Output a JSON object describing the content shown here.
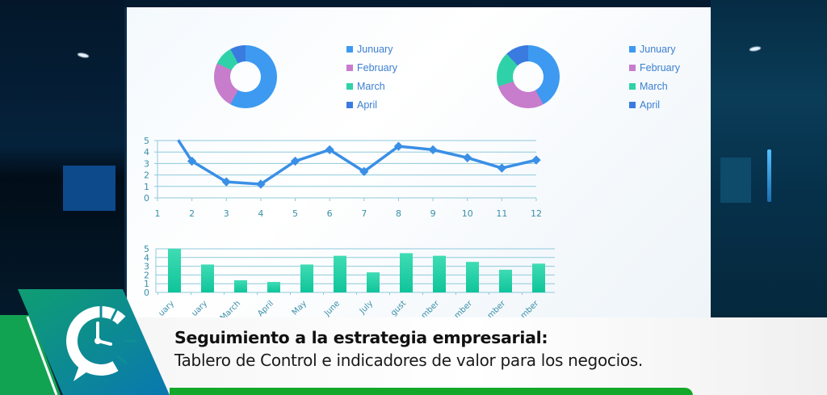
{
  "scene": {
    "description": "Dashboard displayed on a large screen in a dark office",
    "colors": {
      "jan": "#3d9af0",
      "feb": "#c77ccc",
      "mar": "#2fd2a8",
      "apr": "#3a7be0",
      "line": "#3a8fe6",
      "bar": "#17c9a0",
      "grid": "#8ec9dc",
      "brand_green": "#13a829",
      "brand_teal": "#0f8f9a"
    }
  },
  "donut_left": {
    "legend": [
      {
        "label": "Junuary",
        "color": "#3d9af0"
      },
      {
        "label": "February",
        "color": "#c77ccc"
      },
      {
        "label": "March",
        "color": "#2fd2a8"
      },
      {
        "label": "April",
        "color": "#3a7be0"
      }
    ]
  },
  "donut_right": {
    "legend": [
      {
        "label": "Junuary",
        "color": "#3d9af0"
      },
      {
        "label": "February",
        "color": "#c77ccc"
      },
      {
        "label": "March",
        "color": "#2fd2a8"
      },
      {
        "label": "April",
        "color": "#3a7be0"
      }
    ]
  },
  "line_chart": {
    "y_ticks": [
      "0",
      "1",
      "2",
      "3",
      "4",
      "5"
    ],
    "x_ticks": [
      "1",
      "2",
      "3",
      "4",
      "5",
      "6",
      "7",
      "8",
      "9",
      "10",
      "11",
      "12"
    ]
  },
  "bar_chart": {
    "y_ticks": [
      "0",
      "1",
      "2",
      "3",
      "4",
      "5"
    ],
    "x_ticks": [
      "uary",
      "uary",
      "March",
      "April",
      "May",
      "June",
      "July",
      "gust",
      "mber",
      "mber",
      "mber",
      "mber"
    ]
  },
  "chart_data": [
    {
      "type": "pie",
      "title": "",
      "categories": [
        "Junuary",
        "February",
        "March",
        "April"
      ],
      "values": [
        58,
        24,
        10,
        8
      ],
      "legend_position": "right"
    },
    {
      "type": "pie",
      "title": "",
      "categories": [
        "Junuary",
        "February",
        "March",
        "April"
      ],
      "values": [
        42,
        28,
        18,
        12
      ],
      "legend_position": "right"
    },
    {
      "type": "line",
      "title": "",
      "x": [
        1,
        2,
        3,
        4,
        5,
        6,
        7,
        8,
        9,
        10,
        11,
        12
      ],
      "values": [
        6.0,
        3.2,
        1.4,
        1.2,
        3.2,
        4.2,
        2.3,
        4.5,
        4.2,
        3.5,
        2.6,
        3.3
      ],
      "xlabel": "",
      "ylabel": "",
      "ylim": [
        0,
        5
      ],
      "grid": true
    },
    {
      "type": "bar",
      "title": "",
      "categories": [
        "January",
        "February",
        "March",
        "April",
        "May",
        "June",
        "July",
        "August",
        "September",
        "October",
        "November",
        "December"
      ],
      "values": [
        5.0,
        3.2,
        1.4,
        1.2,
        3.2,
        4.2,
        2.3,
        4.5,
        4.2,
        3.5,
        2.6,
        3.3
      ],
      "xlabel": "",
      "ylabel": "",
      "ylim": [
        0,
        5
      ],
      "grid": true
    }
  ],
  "caption": {
    "title": "Seguimiento a la estrategia empresarial:",
    "subtitle": "Tablero de Control e indicadores de valor para los negocios."
  },
  "logo": {
    "icon": "clock-chart-chat-icon"
  }
}
